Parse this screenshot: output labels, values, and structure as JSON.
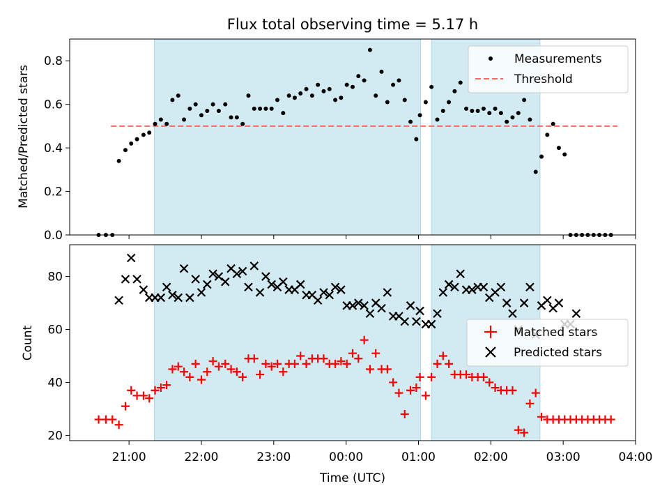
{
  "title": "Flux total observing time = 5.17 h",
  "xlabel": "Time (UTC)",
  "colors": {
    "shade": "#add8e6",
    "measurement": "#000000",
    "threshold": "#ff6666",
    "matched": "#ff0000",
    "predicted": "#000000"
  },
  "chart_data": [
    {
      "type": "scatter",
      "ylabel": "Matched/Predicted stars",
      "ylim": [
        0,
        0.9
      ],
      "yticks": [
        "0.0",
        "0.2",
        "0.4",
        "0.6",
        "0.8"
      ],
      "yticks_values": [
        0,
        0.2,
        0.4,
        0.6,
        0.8
      ],
      "legend": {
        "placement": "upper right",
        "entries": [
          "Measurements",
          "Threshold"
        ]
      },
      "threshold": 0.5,
      "threshold_range_hours": [
        20.75,
        27.75
      ],
      "shaded_intervals_hours": [
        [
          21.35,
          25.03
        ],
        [
          25.18,
          26.68
        ]
      ],
      "measurements": {
        "x_hours": [
          20.58,
          20.68,
          20.77,
          20.86,
          20.95,
          21.03,
          21.11,
          21.2,
          21.28,
          21.36,
          21.44,
          21.52,
          21.6,
          21.68,
          21.76,
          21.84,
          21.92,
          22.0,
          22.08,
          22.16,
          22.24,
          22.33,
          22.41,
          22.49,
          22.57,
          22.65,
          22.73,
          22.81,
          22.89,
          22.97,
          23.05,
          23.13,
          23.21,
          23.29,
          23.37,
          23.45,
          23.53,
          23.61,
          23.69,
          23.77,
          23.85,
          23.93,
          24.01,
          24.09,
          24.17,
          24.25,
          24.33,
          24.41,
          24.49,
          24.57,
          24.65,
          24.73,
          24.81,
          24.89,
          24.97,
          25.02,
          25.1,
          25.18,
          25.26,
          25.34,
          25.42,
          25.5,
          25.58,
          25.66,
          25.74,
          25.82,
          25.9,
          25.98,
          26.06,
          26.14,
          26.22,
          26.3,
          26.38,
          26.46,
          26.54,
          26.62,
          26.7,
          26.78,
          26.86,
          26.94,
          27.02,
          27.1,
          27.18,
          27.26,
          27.34,
          27.42,
          27.5,
          27.58,
          27.66
        ],
        "y": [
          0,
          0,
          0,
          0.34,
          0.39,
          0.42,
          0.44,
          0.46,
          0.47,
          0.51,
          0.53,
          0.51,
          0.62,
          0.64,
          0.53,
          0.58,
          0.6,
          0.55,
          0.57,
          0.6,
          0.57,
          0.6,
          0.54,
          0.54,
          0.51,
          0.64,
          0.58,
          0.58,
          0.58,
          0.58,
          0.62,
          0.56,
          0.64,
          0.63,
          0.65,
          0.67,
          0.64,
          0.69,
          0.66,
          0.67,
          0.62,
          0.63,
          0.69,
          0.68,
          0.73,
          0.71,
          0.85,
          0.64,
          0.75,
          0.61,
          0.69,
          0.71,
          0.62,
          0.52,
          0.44,
          0.55,
          0.61,
          0.68,
          0.53,
          0.57,
          0.61,
          0.66,
          0.7,
          0.58,
          0.57,
          0.57,
          0.58,
          0.56,
          0.58,
          0.56,
          0.52,
          0.54,
          0.56,
          0.62,
          0.53,
          0.29,
          0.36,
          0.46,
          0.51,
          0.4,
          0.37,
          0,
          0,
          0,
          0,
          0,
          0,
          0,
          0
        ]
      }
    },
    {
      "type": "scatter",
      "ylabel": "Count",
      "ylim": [
        18,
        92
      ],
      "yticks": [
        "20",
        "40",
        "60",
        "80"
      ],
      "yticks_values": [
        20,
        40,
        60,
        80
      ],
      "legend": {
        "placement": "center right",
        "entries": [
          "Matched stars",
          "Predicted stars"
        ]
      },
      "shaded_intervals_hours": [
        [
          21.35,
          25.03
        ],
        [
          25.18,
          26.68
        ]
      ],
      "xticks": [
        "21:00",
        "22:00",
        "23:00",
        "00:00",
        "01:00",
        "02:00",
        "03:00",
        "04:00"
      ],
      "xticks_hours": [
        21,
        22,
        23,
        24,
        25,
        26,
        27,
        28
      ],
      "series": [
        {
          "name": "Matched stars",
          "x_hours": [
            20.58,
            20.68,
            20.77,
            20.86,
            20.95,
            21.03,
            21.11,
            21.2,
            21.28,
            21.36,
            21.44,
            21.52,
            21.6,
            21.68,
            21.76,
            21.84,
            21.92,
            22.0,
            22.08,
            22.16,
            22.24,
            22.33,
            22.41,
            22.49,
            22.57,
            22.65,
            22.73,
            22.81,
            22.89,
            22.97,
            23.05,
            23.13,
            23.21,
            23.29,
            23.37,
            23.45,
            23.53,
            23.61,
            23.69,
            23.77,
            23.85,
            23.93,
            24.01,
            24.09,
            24.17,
            24.25,
            24.33,
            24.41,
            24.49,
            24.57,
            24.65,
            24.73,
            24.81,
            24.89,
            24.97,
            25.02,
            25.1,
            25.18,
            25.26,
            25.34,
            25.42,
            25.5,
            25.58,
            25.66,
            25.74,
            25.82,
            25.9,
            25.98,
            26.06,
            26.14,
            26.22,
            26.3,
            26.38,
            26.46,
            26.54,
            26.62,
            26.7,
            26.78,
            26.86,
            26.94,
            27.02,
            27.1,
            27.18,
            27.26,
            27.34,
            27.42,
            27.5,
            27.58,
            27.66
          ],
          "values": [
            26,
            26,
            26,
            24,
            31,
            37,
            35,
            35,
            34,
            37,
            38,
            39,
            45,
            46,
            44,
            42,
            47,
            41,
            44,
            48,
            46,
            47,
            45,
            44,
            42,
            49,
            49,
            43,
            47,
            46,
            47,
            44,
            47,
            47,
            50,
            47,
            49,
            49,
            49,
            47,
            47,
            48,
            47,
            51,
            49,
            56,
            45,
            51,
            45,
            45,
            40,
            36,
            28,
            37,
            38,
            42,
            35,
            42,
            47,
            50,
            47,
            43,
            43,
            43,
            42,
            42,
            42,
            40,
            38,
            37,
            37,
            37,
            22,
            21,
            32,
            36,
            27,
            26,
            26,
            26,
            26,
            26,
            26,
            26,
            26,
            26,
            26,
            26,
            26
          ]
        },
        {
          "name": "Predicted stars",
          "x_hours": [
            20.86,
            20.95,
            21.03,
            21.11,
            21.2,
            21.28,
            21.36,
            21.44,
            21.52,
            21.6,
            21.68,
            21.76,
            21.84,
            21.92,
            22.0,
            22.08,
            22.16,
            22.24,
            22.33,
            22.41,
            22.49,
            22.57,
            22.65,
            22.73,
            22.81,
            22.89,
            22.97,
            23.05,
            23.13,
            23.21,
            23.29,
            23.37,
            23.45,
            23.53,
            23.61,
            23.69,
            23.77,
            23.85,
            23.93,
            24.01,
            24.09,
            24.17,
            24.25,
            24.33,
            24.41,
            24.49,
            24.57,
            24.65,
            24.73,
            24.81,
            24.89,
            24.97,
            25.02,
            25.1,
            25.18,
            25.26,
            25.34,
            25.42,
            25.5,
            25.58,
            25.66,
            25.74,
            25.82,
            25.9,
            25.98,
            26.06,
            26.14,
            26.22,
            26.3,
            26.38,
            26.46,
            26.54,
            26.62,
            26.7,
            26.78,
            26.86,
            26.94,
            27.02,
            27.1,
            27.18
          ],
          "values": [
            71,
            79,
            87,
            79,
            75,
            72,
            72,
            72,
            76,
            73,
            72,
            83,
            72,
            79,
            74,
            77,
            81,
            80,
            78,
            83,
            81,
            82,
            76,
            84,
            74,
            80,
            77,
            76,
            78,
            75,
            75,
            77,
            73,
            73,
            71,
            74,
            73,
            76,
            75,
            69,
            69,
            70,
            69,
            66,
            70,
            68,
            74,
            65,
            65,
            63,
            69,
            63,
            67,
            62,
            62,
            66,
            74,
            77,
            76,
            81,
            75,
            75,
            76,
            76,
            72,
            74,
            76,
            70,
            66,
            60,
            70,
            76,
            58,
            69,
            71,
            68,
            70,
            62,
            62,
            66
          ]
        }
      ]
    }
  ]
}
